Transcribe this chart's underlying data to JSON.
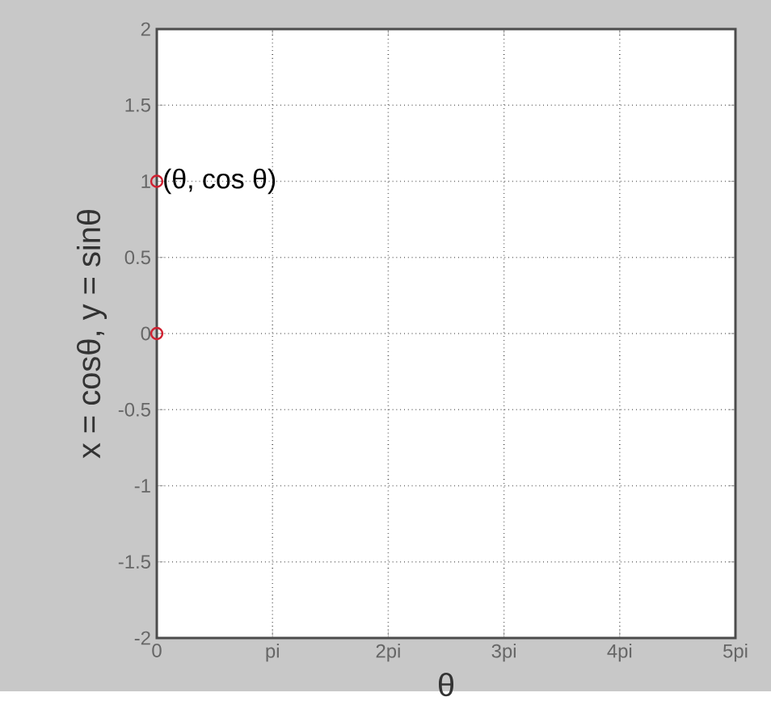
{
  "chart_data": {
    "type": "scatter",
    "xlabel": "θ",
    "ylabel": "x = cosθ, y = sinθ",
    "x": [
      0,
      0
    ],
    "values": [
      1,
      0
    ],
    "color": "#d02030",
    "marker": "circle",
    "xlim": [
      0,
      5
    ],
    "xticks": [
      0,
      {
        "value": 1,
        "label": "pi"
      },
      {
        "value": 2,
        "label": "2pi"
      },
      {
        "value": 3,
        "label": "3pi"
      },
      {
        "value": 4,
        "label": "4pi"
      },
      {
        "value": 5,
        "label": "5pi"
      }
    ],
    "ylim": [
      -2,
      2
    ],
    "yticks": [
      -2,
      -1.5,
      -1,
      -0.5,
      0,
      0.5,
      1,
      1.5,
      2
    ],
    "grid": true,
    "annotations": [
      {
        "text": "(θ, cos θ)",
        "x": 0,
        "y": 1
      }
    ]
  }
}
